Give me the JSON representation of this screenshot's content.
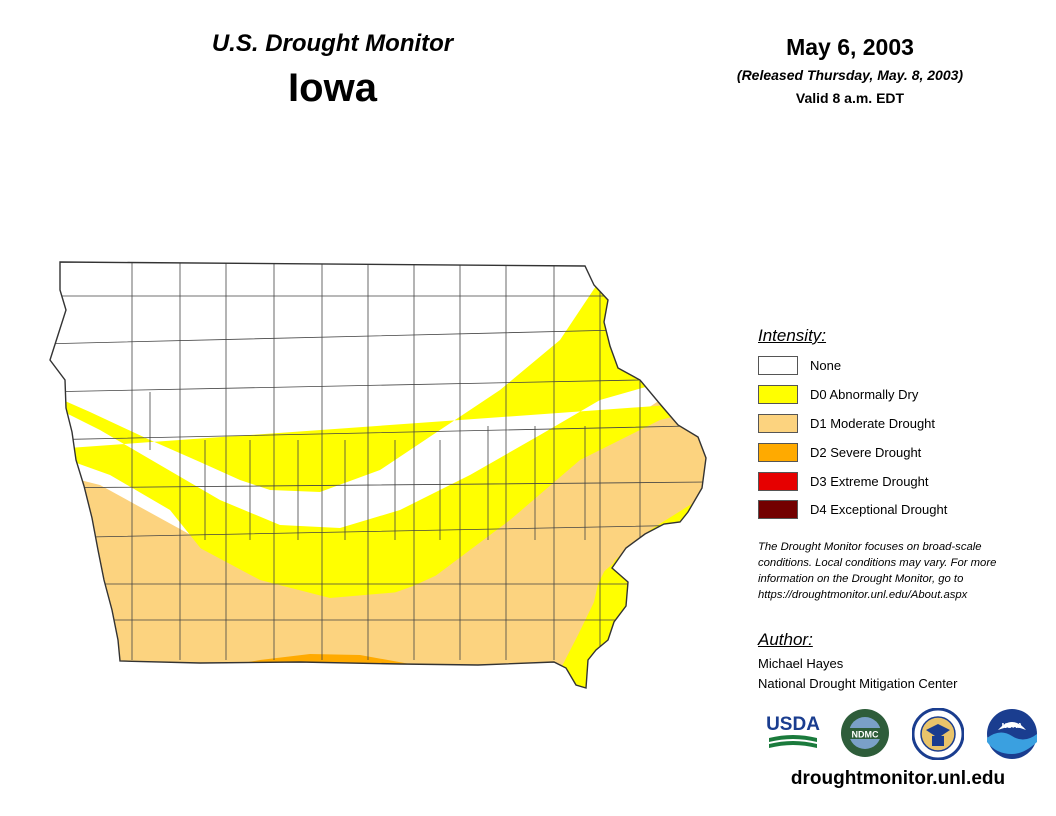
{
  "header": {
    "title_sub": "U.S. Drought Monitor",
    "title_main": "Iowa",
    "date": "May 6, 2003",
    "released": "(Released Thursday, May. 8, 2003)",
    "valid": "Valid 8 a.m. EDT"
  },
  "legend": {
    "title": "Intensity:",
    "items": [
      {
        "label": "None",
        "color": "#ffffff"
      },
      {
        "label": "D0 Abnormally Dry",
        "color": "#ffff00"
      },
      {
        "label": "D1 Moderate Drought",
        "color": "#fcd37f"
      },
      {
        "label": "D2 Severe Drought",
        "color": "#ffaa00"
      },
      {
        "label": "D3 Extreme Drought",
        "color": "#e60000"
      },
      {
        "label": "D4 Exceptional Drought",
        "color": "#730000"
      }
    ]
  },
  "note": "The Drought Monitor focuses on broad-scale conditions. Local conditions may vary. For more information on the Drought Monitor, go to https://droughtmonitor.unl.edu/About.aspx",
  "author": {
    "title": "Author:",
    "name": "Michael Hayes",
    "org": "National Drought Mitigation Center"
  },
  "logos": {
    "usda": "USDA",
    "ndmc": "NDMC",
    "noaa": "NOAA"
  },
  "footer": {
    "site": "droughtmonitor.unl.edu"
  }
}
